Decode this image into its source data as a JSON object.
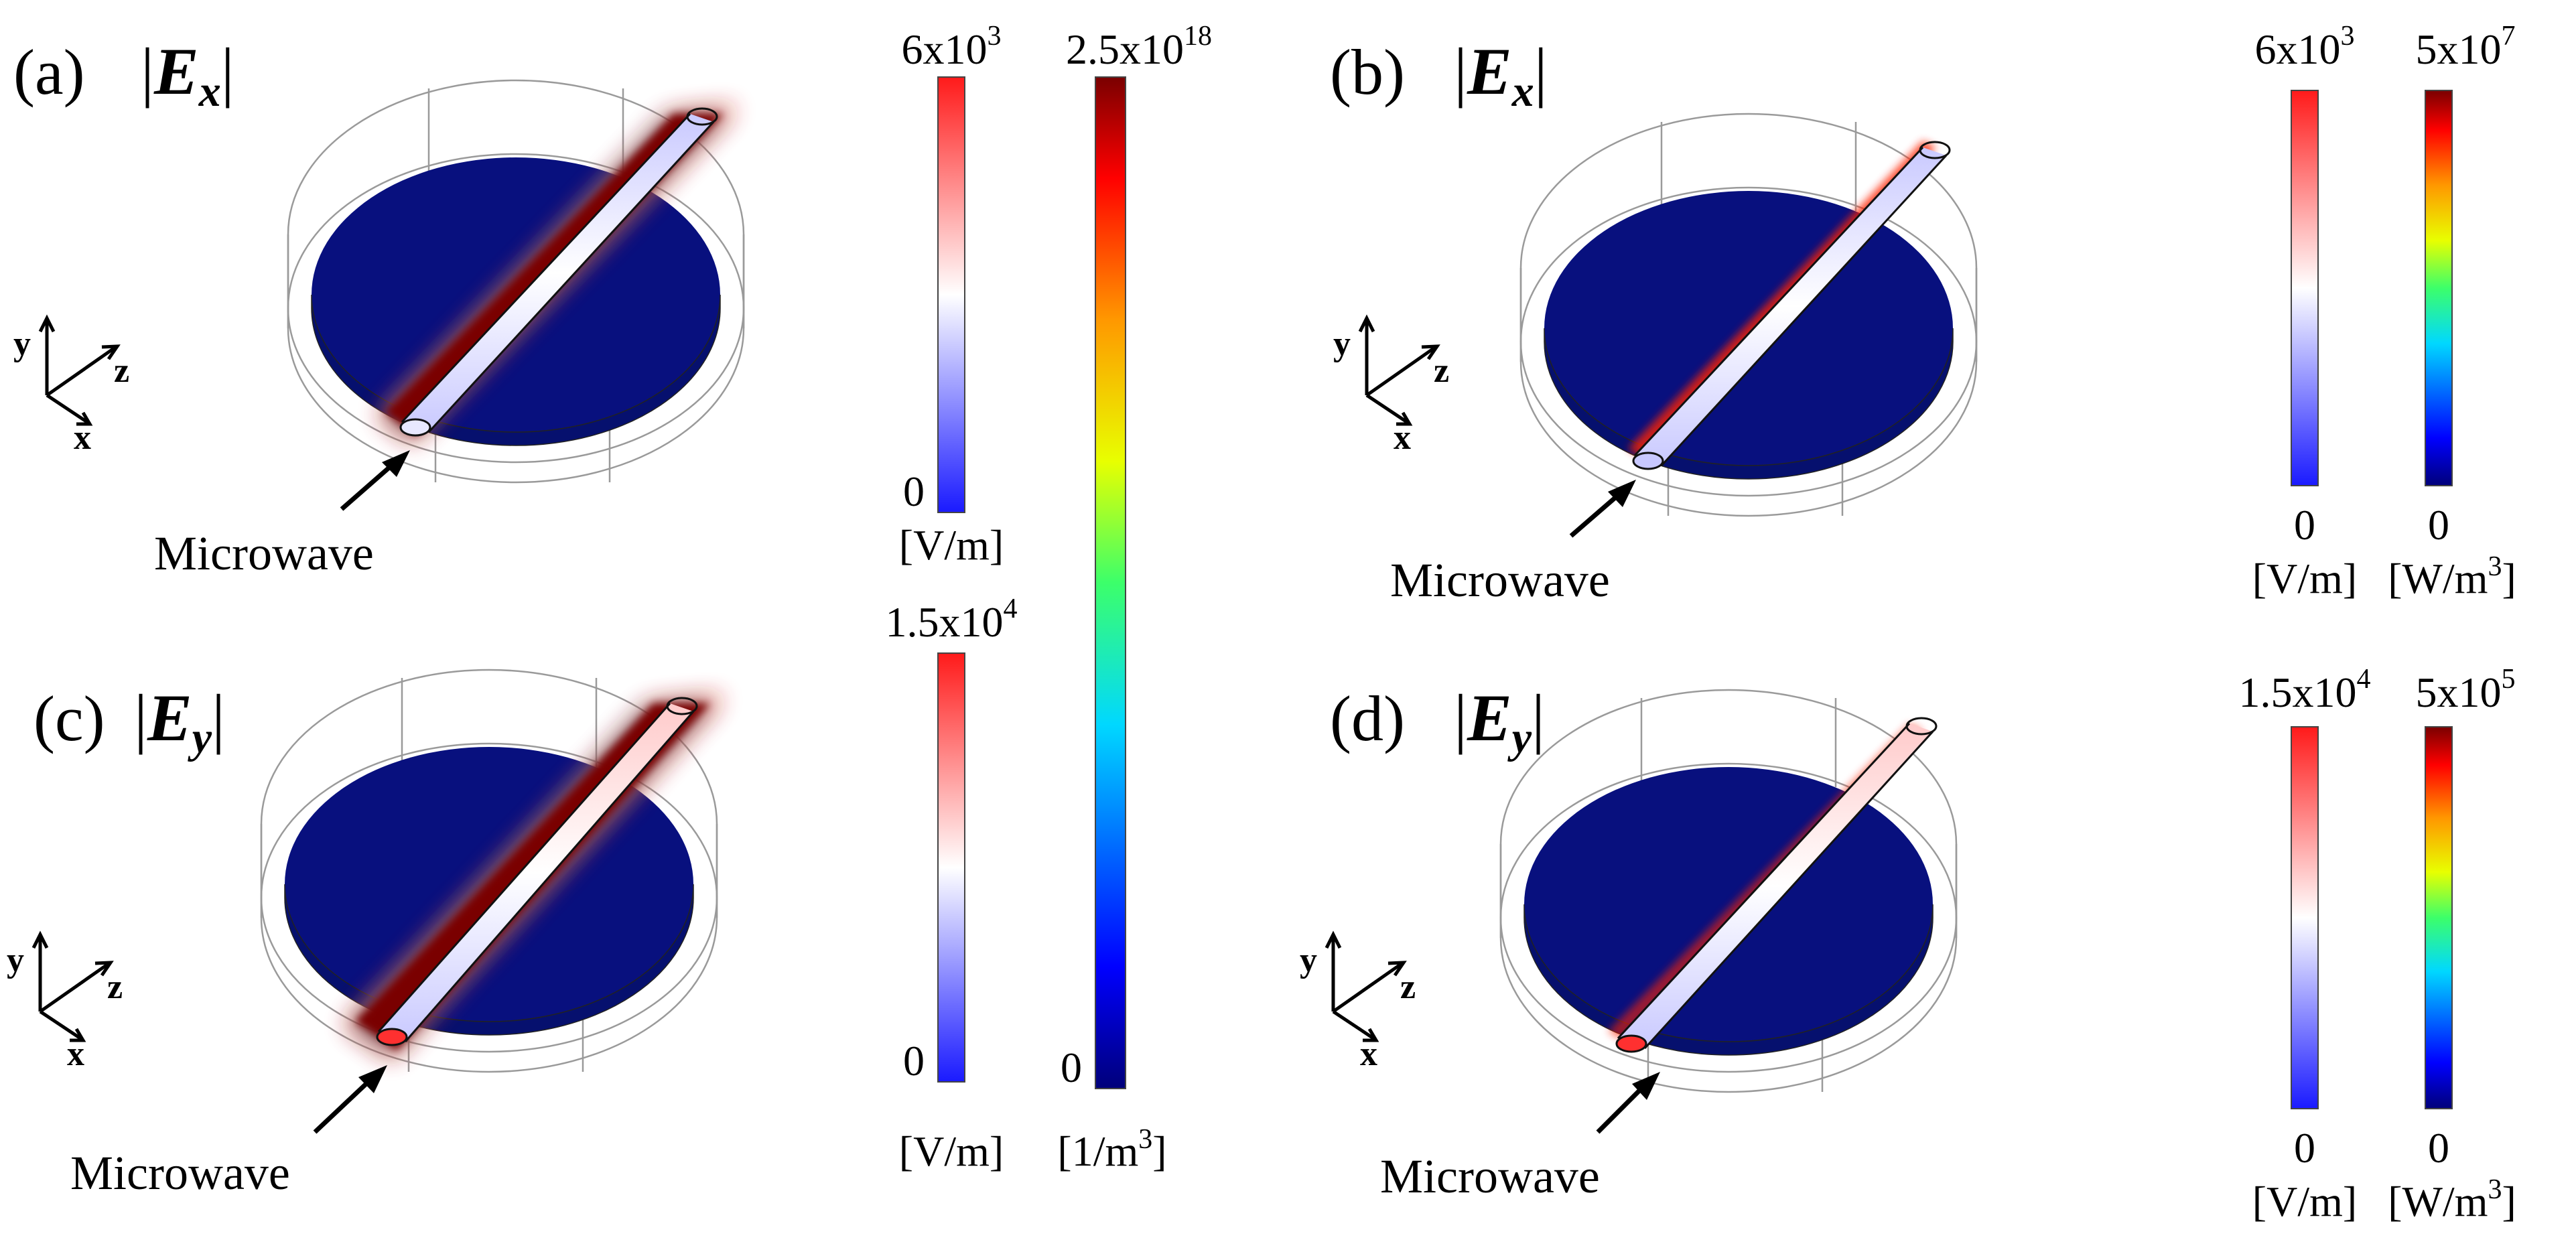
{
  "colors": {
    "background_disk": "#08107e",
    "hot": "#7a0000",
    "waveguide_rim": "#111111",
    "frame": "#9a9a9a"
  },
  "icons": {
    "arrow": "arrow-icon",
    "axes": "coordinate-axes-icon"
  },
  "panels": [
    {
      "label": "(a)",
      "component_main": "E",
      "component_sub": "x",
      "axes": {
        "x": "x",
        "y": "y",
        "z": "z"
      },
      "source_label": "Microwave"
    },
    {
      "label": "(b)",
      "component_main": "E",
      "component_sub": "x",
      "axes": {
        "x": "x",
        "y": "y",
        "z": "z"
      },
      "source_label": "Microwave"
    },
    {
      "label": "(c)",
      "component_main": "E",
      "component_sub": "y",
      "axes": {
        "x": "x",
        "y": "y",
        "z": "z"
      },
      "source_label": "Microwave"
    },
    {
      "label": "(d)",
      "component_main": "E",
      "component_sub": "y",
      "axes": {
        "x": "x",
        "y": "y",
        "z": "z"
      },
      "source_label": "Microwave"
    }
  ],
  "colorbars": {
    "a_field": {
      "colormap": "blue-white-red",
      "max_base": "6x10",
      "max_exp": "3",
      "min": "0",
      "unit": "[V/m]"
    },
    "c_field": {
      "colormap": "blue-white-red",
      "max_base": "1.5x10",
      "max_exp": "4",
      "min": "0",
      "unit": "[V/m]"
    },
    "density": {
      "colormap": "jet",
      "max_base": "2.5x10",
      "max_exp": "18",
      "min": "0",
      "unit_base": "[1/m",
      "unit_exp": "3",
      "unit_end": "]"
    },
    "b_field": {
      "colormap": "blue-white-red",
      "max_base": "6x10",
      "max_exp": "3",
      "min": "0",
      "unit": "[V/m]"
    },
    "b_power": {
      "colormap": "jet",
      "max_base": "5x10",
      "max_exp": "7",
      "min": "0",
      "unit_base": "[W/m",
      "unit_exp": "3",
      "unit_end": "]"
    },
    "d_field": {
      "colormap": "blue-white-red",
      "max_base": "1.5x10",
      "max_exp": "4",
      "min": "0",
      "unit": "[V/m]"
    },
    "d_power": {
      "colormap": "jet",
      "max_base": "5x10",
      "max_exp": "5",
      "min": "0",
      "unit_base": "[W/m",
      "unit_exp": "3",
      "unit_end": "]"
    }
  }
}
